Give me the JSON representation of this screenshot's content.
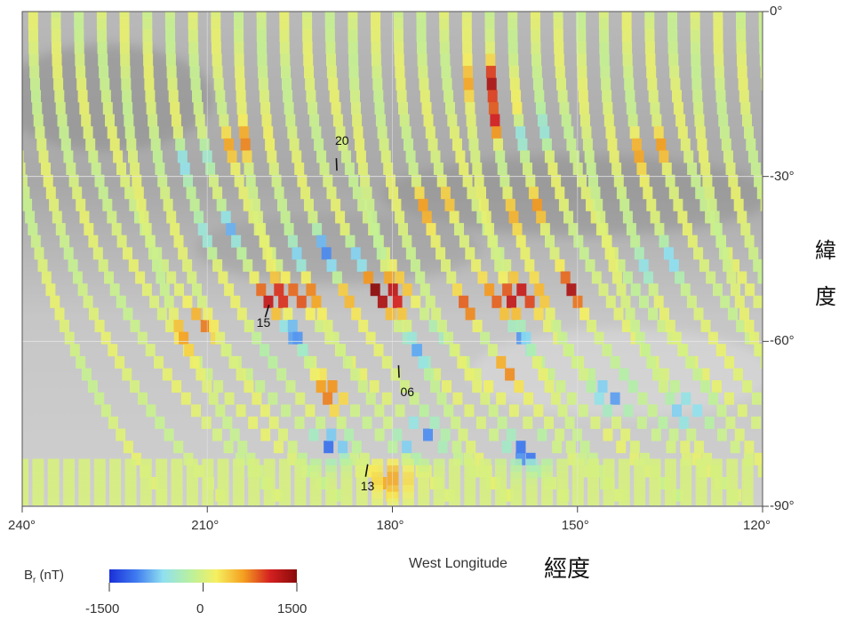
{
  "chart_data": {
    "type": "heatmap",
    "title": "",
    "xlabel": "West Longitude",
    "xlabel_cjk": "經度",
    "ylabel_cjk_1": "緯",
    "ylabel_cjk_2": "度",
    "xlim": [
      240,
      120
    ],
    "ylim": [
      -90,
      0
    ],
    "x_ticks": [
      240,
      210,
      180,
      150,
      120
    ],
    "x_tick_labels": [
      "240°",
      "210°",
      "180°",
      "150°",
      "120°"
    ],
    "y_ticks": [
      0,
      -30,
      -60,
      -90
    ],
    "y_tick_labels": [
      "0°",
      "-30°",
      "-60°",
      "-90°"
    ],
    "grid": true,
    "colorbar": {
      "label": "B",
      "label_sub": "r",
      "label_unit": "(nT)",
      "min": -1500,
      "max": 1500,
      "ticks": [
        -1500,
        0,
        1500
      ],
      "tick_labels": [
        "-1500",
        "0",
        "1500"
      ],
      "colors": [
        "#1a2fd8",
        "#3f7bf0",
        "#8fe0f0",
        "#b8f0a0",
        "#f5f060",
        "#f5a020",
        "#d42020",
        "#8a0a0a"
      ]
    },
    "annotations": [
      {
        "text": "20",
        "lon": 189,
        "lat": -27
      },
      {
        "text": "15",
        "lon": 200,
        "lat": -54
      },
      {
        "text": "06",
        "lon": 179,
        "lat": -65
      },
      {
        "text": "13",
        "lon": 184,
        "lat": -83
      }
    ],
    "strong_anomalies": [
      {
        "lon": 165,
        "lat": -13,
        "value": 1300
      },
      {
        "lon": 163,
        "lat": -20,
        "value": 1100
      },
      {
        "lon": 160,
        "lat": -52,
        "value": 1400
      },
      {
        "lon": 152,
        "lat": -51,
        "value": 1300
      },
      {
        "lon": 167,
        "lat": -53,
        "value": 1200
      },
      {
        "lon": 185,
        "lat": -50,
        "value": 1400
      },
      {
        "lon": 181,
        "lat": -52,
        "value": 1300
      },
      {
        "lon": 200,
        "lat": -52,
        "value": 1100
      },
      {
        "lon": 195,
        "lat": -52,
        "value": 1000
      },
      {
        "lon": 205,
        "lat": -24,
        "value": 900
      },
      {
        "lon": 173,
        "lat": -35,
        "value": 900
      },
      {
        "lon": 158,
        "lat": -36,
        "value": 1000
      },
      {
        "lon": 138,
        "lat": -25,
        "value": 1000
      },
      {
        "lon": 212,
        "lat": -58,
        "value": 900
      },
      {
        "lon": 162,
        "lat": -65,
        "value": 800
      },
      {
        "lon": 190,
        "lat": -69,
        "value": 800
      },
      {
        "lon": 180,
        "lat": -85,
        "value": 1000
      },
      {
        "lon": 193,
        "lat": -44,
        "value": -1300
      },
      {
        "lon": 186,
        "lat": -46,
        "value": -1100
      },
      {
        "lon": 208,
        "lat": -40,
        "value": -1000
      },
      {
        "lon": 197,
        "lat": -59,
        "value": -1100
      },
      {
        "lon": 175,
        "lat": -61,
        "value": -1000
      },
      {
        "lon": 160,
        "lat": -60,
        "value": -1000
      },
      {
        "lon": 158,
        "lat": -22,
        "value": -1000
      },
      {
        "lon": 137,
        "lat": -46,
        "value": -1000
      },
      {
        "lon": 176,
        "lat": -78,
        "value": -1300
      },
      {
        "lon": 190,
        "lat": -79,
        "value": -1200
      },
      {
        "lon": 158,
        "lat": -80,
        "value": -1200
      },
      {
        "lon": 145,
        "lat": -70,
        "value": -900
      },
      {
        "lon": 133,
        "lat": -73,
        "value": -900
      },
      {
        "lon": 212,
        "lat": -27,
        "value": -900
      }
    ]
  }
}
